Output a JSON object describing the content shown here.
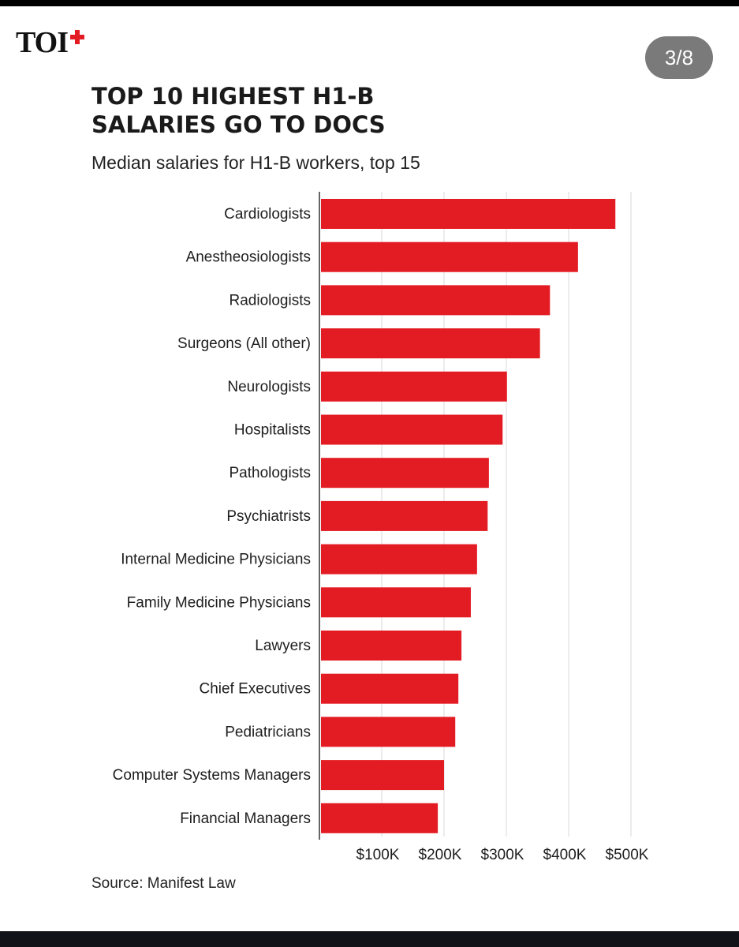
{
  "brand": {
    "name": "TOI",
    "plus_icon": "red-plus-icon",
    "accent": "#e31b23"
  },
  "page_counter": "3/8",
  "chart_data": {
    "type": "bar",
    "orientation": "horizontal",
    "title_lines": [
      "TOP 10 HIGHEST H1-B",
      "SALARIES GO TO DOCS"
    ],
    "subtitle": "Median salaries for H1-B workers, top 15",
    "categories": [
      "Cardiologists",
      "Anestheosiologists",
      "Radiologists",
      "Surgeons (All other)",
      "Neurologists",
      "Hospitalists",
      "Pathologists",
      "Psychiatrists",
      "Internal Medicine Physicians",
      "Family Medicine Physicians",
      "Lawyers",
      "Chief Executives",
      "Pediatricians",
      "Computer Systems Managers",
      "Financial Managers"
    ],
    "values": [
      475000,
      415000,
      370000,
      354000,
      301000,
      294000,
      272000,
      270000,
      253000,
      243000,
      228000,
      223000,
      218000,
      200000,
      190000
    ],
    "tick_labels": [
      "$100K",
      "$200K",
      "$300K",
      "$400K",
      "$500K"
    ],
    "tick_values": [
      100000,
      200000,
      300000,
      400000,
      500000
    ],
    "xlim": [
      0,
      500000
    ],
    "bar_color": "#e31b23",
    "grid": true,
    "source": "Source: Manifest Law"
  }
}
